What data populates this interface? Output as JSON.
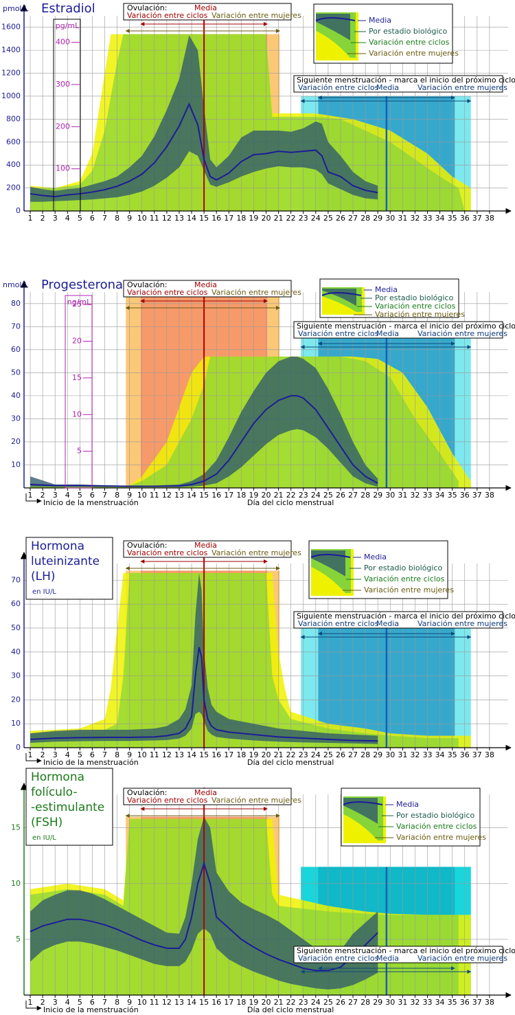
{
  "chart_data": [
    {
      "type": "line",
      "title": "Estradiol",
      "ylabel": "pmol/L",
      "title_color": "#1c1c96",
      "xlim": [
        0.5,
        39.5
      ],
      "ylim": [
        0,
        1700
      ],
      "yticks": [
        0,
        200,
        400,
        600,
        800,
        1000,
        1200,
        1400,
        1600
      ],
      "xticks": [
        1,
        2,
        3,
        4,
        5,
        6,
        7,
        8,
        9,
        10,
        11,
        12,
        13,
        14,
        15,
        16,
        17,
        18,
        19,
        20,
        21,
        22,
        23,
        24,
        25,
        26,
        27,
        28,
        29,
        30,
        31,
        32,
        33,
        34,
        35,
        36,
        37,
        38
      ],
      "y2label": "pg/mL",
      "y2lim": [
        0,
        463
      ],
      "y2ticks": [
        100,
        200,
        300,
        400
      ],
      "grid": true,
      "series": [
        {
          "name": "Media",
          "color": "#1c1c96",
          "x": [
            1,
            2,
            3,
            4,
            5,
            6,
            7,
            8,
            9,
            10,
            11,
            12,
            13,
            13.8,
            14.5,
            15,
            15.5,
            16,
            17,
            18,
            19,
            20,
            21,
            22,
            23,
            24,
            24.5,
            25,
            26,
            27,
            28,
            29
          ],
          "values": [
            150,
            135,
            125,
            140,
            150,
            165,
            185,
            215,
            260,
            320,
            420,
            560,
            740,
            930,
            750,
            450,
            300,
            270,
            330,
            430,
            490,
            500,
            520,
            510,
            520,
            530,
            480,
            340,
            300,
            220,
            180,
            160
          ]
        }
      ],
      "band": {
        "name": "Por estadio biológico",
        "color": "#2f5a6a",
        "lower": [
          80,
          80,
          85,
          90,
          95,
          100,
          110,
          120,
          140,
          170,
          220,
          290,
          380,
          520,
          480,
          350,
          230,
          210,
          250,
          300,
          340,
          370,
          390,
          380,
          380,
          360,
          320,
          240,
          190,
          140,
          110,
          100
        ],
        "upper": [
          210,
          190,
          175,
          190,
          200,
          230,
          260,
          300,
          380,
          480,
          650,
          880,
          1150,
          1530,
          1400,
          900,
          450,
          380,
          480,
          640,
          700,
          700,
          700,
          690,
          720,
          780,
          760,
          600,
          480,
          340,
          260,
          220
        ]
      },
      "areas": [
        {
          "name": "Variación entre mujeres",
          "color": "#eef200",
          "x": [
            1,
            3,
            5,
            6,
            7,
            7.5,
            20,
            20.5,
            24,
            27,
            30,
            33,
            35,
            36.5
          ],
          "values": [
            220,
            200,
            260,
            500,
            1200,
            1540,
            1540,
            850,
            850,
            800,
            700,
            500,
            300,
            200
          ]
        },
        {
          "name": "Variación entre ciclos",
          "color": "#86d43a",
          "x": [
            1,
            3,
            5,
            6,
            7,
            8,
            8.5,
            20,
            20.5,
            24,
            26,
            28,
            30,
            32,
            34,
            35.5,
            36
          ],
          "values": [
            200,
            200,
            230,
            350,
            700,
            1300,
            1540,
            1540,
            820,
            820,
            800,
            700,
            600,
            450,
            300,
            200,
            0
          ]
        }
      ],
      "ovulation": {
        "label": "Ovulación:",
        "mean": 15,
        "cycles": [
          9.9,
          20.1
        ],
        "women": [
          8.7,
          21.1
        ],
        "top": 1540
      },
      "next_menstruation": {
        "label": "Siguiente menstruación -  marca el inicio del próximo ciclo",
        "mean": 29.7,
        "inner": [
          24.2,
          35.2
        ],
        "outer": [
          22.8,
          36.5
        ],
        "top": 1000
      }
    },
    {
      "type": "line",
      "title": "Progesterona",
      "ylabel": "nmol/L",
      "title_color": "#1c1c96",
      "xlim": [
        0.5,
        39.5
      ],
      "ylim": [
        0,
        85
      ],
      "yticks": [
        10,
        20,
        30,
        40,
        50,
        60,
        70,
        80
      ],
      "xticks": [
        1,
        2,
        3,
        4,
        5,
        6,
        7,
        8,
        9,
        10,
        11,
        12,
        13,
        14,
        15,
        16,
        17,
        18,
        19,
        20,
        21,
        22,
        23,
        24,
        25,
        26,
        27,
        28,
        29,
        30,
        31,
        32,
        33,
        34,
        35,
        36,
        37,
        38
      ],
      "y2label": "ng/mL",
      "y2lim": [
        0,
        26.7
      ],
      "y2ticks": [
        5,
        10,
        15,
        20,
        25
      ],
      "grid": true,
      "x_note": "Inicio de la menstruación",
      "xlabel": "Día del ciclo menstrual",
      "series": [
        {
          "name": "Media",
          "color": "#1c1c96",
          "x": [
            1,
            3,
            5,
            7,
            9,
            11,
            13,
            14,
            15,
            16,
            17,
            18,
            19,
            20,
            21,
            22,
            22.5,
            23,
            24,
            25,
            26,
            27,
            28,
            29
          ],
          "values": [
            1.5,
            1,
            1,
            0.8,
            0.7,
            0.7,
            0.8,
            1.5,
            3,
            6,
            12,
            20,
            28,
            34,
            38,
            40,
            40,
            39,
            34,
            26,
            18,
            10,
            5,
            2
          ]
        }
      ],
      "band": {
        "name": "Por estadio biológico",
        "color": "#2f5a6a",
        "lower": [
          0.5,
          0.5,
          0.5,
          0.5,
          0.4,
          0.4,
          0.4,
          0.6,
          1,
          2,
          5,
          9,
          14,
          19,
          23,
          25,
          25.5,
          25,
          22,
          17,
          11,
          5,
          2,
          0.5
        ],
        "upper": [
          5,
          1.5,
          1.5,
          1.2,
          1,
          1,
          1.5,
          3,
          6,
          12,
          22,
          33,
          42,
          50,
          55,
          57,
          57,
          56,
          52,
          43,
          32,
          20,
          10,
          4
        ]
      },
      "areas": [
        {
          "name": "Variación entre mujeres",
          "color": "#eef200",
          "x": [
            1,
            9,
            10,
            12,
            13,
            14,
            15,
            27,
            29,
            31,
            33,
            35,
            36.5
          ],
          "values": [
            1,
            1,
            5,
            20,
            35,
            50,
            57,
            57,
            56,
            50,
            35,
            15,
            3
          ]
        },
        {
          "name": "Variación entre ciclos",
          "color": "#86d43a",
          "x": [
            1,
            9,
            10,
            12,
            14,
            15,
            15.5,
            26,
            28,
            30,
            32,
            34,
            35.5
          ],
          "values": [
            1,
            1,
            3,
            10,
            30,
            45,
            57,
            57,
            55,
            48,
            30,
            15,
            3
          ]
        }
      ],
      "ovulation": {
        "label": "Ovulación:",
        "mean": 15,
        "cycles": [
          9.9,
          20.1
        ],
        "women": [
          8.7,
          21.1
        ],
        "top": 85
      },
      "next_menstruation": {
        "label": "Siguiente menstruación -  marca el inicio del próximo ciclo",
        "mean": 29.7,
        "inner": [
          24.2,
          35.2
        ],
        "outer": [
          22.8,
          36.5
        ],
        "top": 65
      }
    },
    {
      "type": "line",
      "title_lines": [
        "Hormona",
        "luteinizante",
        "(LH)"
      ],
      "ylabel": "en IU/L",
      "title_color": "#1c1c96",
      "xlim": [
        0.5,
        39.5
      ],
      "ylim": [
        0,
        77
      ],
      "yticks": [
        0,
        10,
        20,
        30,
        40,
        50,
        60,
        70
      ],
      "xticks": [
        1,
        2,
        3,
        4,
        5,
        6,
        7,
        8,
        9,
        10,
        11,
        12,
        13,
        14,
        15,
        16,
        17,
        18,
        19,
        20,
        21,
        22,
        23,
        24,
        25,
        26,
        27,
        28,
        29,
        30,
        31,
        32,
        33,
        34,
        35,
        36,
        37,
        38
      ],
      "grid": true,
      "x_note": "Inicio de la menstruación",
      "xlabel": "Día del ciclo menstrual",
      "series": [
        {
          "name": "Media",
          "color": "#1c1c96",
          "x": [
            1,
            3,
            5,
            7,
            9,
            11,
            12,
            13,
            13.5,
            14,
            14.3,
            14.6,
            14.8,
            15,
            15.3,
            15.6,
            16,
            17,
            19,
            21,
            23,
            25,
            27,
            29
          ],
          "values": [
            3.5,
            4,
            4.2,
            4.3,
            4.3,
            4.5,
            5,
            6,
            8,
            13,
            30,
            42,
            38,
            20,
            12,
            9,
            7.5,
            6.5,
            5.5,
            4.5,
            4,
            3.5,
            3,
            2.8
          ]
        }
      ],
      "band": {
        "name": "Por estadio biológico",
        "color": "#2f5a6a",
        "lower": [
          2,
          2.5,
          2.7,
          2.8,
          2.8,
          3,
          3.2,
          3.8,
          5,
          8,
          14,
          15,
          14,
          11,
          7,
          5.5,
          4.5,
          3.8,
          3,
          2.5,
          2.2,
          2,
          1.8,
          1.5
        ],
        "upper": [
          6,
          7,
          7.5,
          7.5,
          7.5,
          8,
          9,
          12,
          16,
          26,
          55,
          73,
          66,
          40,
          25,
          18,
          15,
          12,
          10,
          8,
          7,
          6,
          5.5,
          5
        ]
      },
      "areas": [
        {
          "name": "Variación entre mujeres",
          "color": "#eef200",
          "x": [
            1,
            5,
            7,
            7.5,
            8,
            8.5,
            20.5,
            21,
            21.5,
            22,
            25,
            28,
            30,
            33,
            36.5
          ],
          "values": [
            7,
            8,
            12,
            25,
            50,
            73,
            73,
            40,
            25,
            15,
            10,
            8,
            6,
            5,
            5
          ]
        },
        {
          "name": "Variación entre ciclos",
          "color": "#86d43a",
          "x": [
            1,
            5,
            7,
            8,
            8.5,
            9,
            20,
            20.5,
            21,
            22,
            25,
            28,
            30,
            33,
            35.5
          ],
          "values": [
            6,
            7,
            7.5,
            10,
            30,
            73,
            73,
            30,
            20,
            12,
            8,
            6,
            5,
            4,
            4
          ]
        }
      ],
      "ovulation": {
        "label": "Ovulación:",
        "mean": 15,
        "cycles": [
          9.9,
          20.1
        ],
        "women": [
          8.7,
          21.1
        ],
        "top": 74
      },
      "next_menstruation": {
        "label": "Siguiente menstruación -  marca el inicio del próximo ciclo",
        "mean": 29.7,
        "inner": [
          24.2,
          35.2
        ],
        "outer": [
          22.8,
          36.5
        ],
        "top": 50
      }
    },
    {
      "type": "line",
      "title_lines": [
        "Hormona",
        "folículo-",
        "-estimulante",
        "(FSH)"
      ],
      "ylabel": "en IU/L",
      "title_color": "#1a7a1a",
      "xlim": [
        0.5,
        39.5
      ],
      "ylim": [
        0,
        18
      ],
      "yticks": [
        5,
        10,
        15
      ],
      "xticks": [
        1,
        2,
        3,
        4,
        5,
        6,
        7,
        8,
        9,
        10,
        11,
        12,
        13,
        14,
        15,
        16,
        17,
        18,
        19,
        20,
        21,
        22,
        23,
        24,
        25,
        26,
        27,
        28,
        29,
        30,
        31,
        32,
        33,
        34,
        35,
        36,
        37,
        38
      ],
      "grid": true,
      "x_note": "Inicio de la menstruación",
      "xlabel": "Día del ciclo menstrual",
      "series": [
        {
          "name": "Media",
          "color": "#1c1c96",
          "x": [
            1,
            2,
            3,
            4,
            5,
            6,
            7,
            8,
            9,
            10,
            11,
            12,
            13,
            13.5,
            14,
            14.5,
            15,
            15.5,
            16,
            17,
            18,
            19,
            20,
            21,
            22,
            23,
            24,
            25,
            26,
            27,
            28,
            29
          ],
          "values": [
            5.7,
            6.2,
            6.5,
            6.8,
            6.8,
            6.6,
            6.3,
            5.9,
            5.4,
            4.9,
            4.5,
            4.2,
            4.2,
            5,
            7,
            10,
            11.8,
            10,
            7,
            6,
            5,
            4.3,
            3.7,
            3.2,
            2.8,
            2.4,
            2.2,
            2.2,
            2.5,
            3.5,
            4.5,
            5.6
          ]
        }
      ],
      "band": {
        "name": "Por estadio biológico",
        "color": "#2f5a6a",
        "lower": [
          3,
          4,
          4.5,
          4.8,
          4.8,
          4.6,
          4.3,
          4,
          3.6,
          3.2,
          2.8,
          2.6,
          2.6,
          3,
          4,
          5.5,
          6,
          5.5,
          4.2,
          3.2,
          2.6,
          2.1,
          1.7,
          1.3,
          1,
          0.8,
          0.6,
          0.5,
          0.6,
          0.9,
          1.4,
          2
        ],
        "upper": [
          7.5,
          8.5,
          9,
          9.4,
          9.4,
          9.1,
          8.6,
          8,
          7.4,
          6.8,
          6.2,
          5.6,
          5.5,
          7,
          10,
          14,
          16,
          15,
          11,
          9.3,
          8.3,
          7.7,
          7.2,
          6.6,
          5.8,
          5,
          4.2,
          3.4,
          4,
          5.5,
          6.5,
          7.5
        ]
      },
      "areas": [
        {
          "name": "Variación entre mujeres",
          "color": "#eef200",
          "x": [
            1,
            4,
            7,
            8.5,
            9,
            20.5,
            21,
            25,
            28,
            30,
            33,
            36.5
          ],
          "values": [
            9.5,
            10,
            9.5,
            8.5,
            15.8,
            15.8,
            9,
            8,
            7.5,
            7.3,
            7.2,
            7.2
          ]
        },
        {
          "name": "Variación entre ciclos",
          "color": "#86d43a",
          "x": [
            1,
            4,
            7,
            8.5,
            9,
            20,
            20.5,
            21,
            25,
            28,
            29.5,
            30,
            35.5
          ],
          "values": [
            9,
            9.5,
            9,
            8,
            15.8,
            15.8,
            9,
            8,
            7.5,
            7.3,
            7.2,
            7.2,
            7.2
          ]
        }
      ],
      "ovulation": {
        "label": "Ovulación:",
        "mean": 15,
        "cycles": [
          9.9,
          20.1
        ],
        "women": [
          8.7,
          21.1
        ],
        "top": 16
      },
      "next_menstruation": {
        "label": "Siguiente menstruación -  marca el inicio del próximo ciclo",
        "mean": 29.7,
        "inner": [
          24.2,
          35.2
        ],
        "outer": [
          22.8,
          36.5
        ],
        "top": 11.5
      }
    }
  ]
}
